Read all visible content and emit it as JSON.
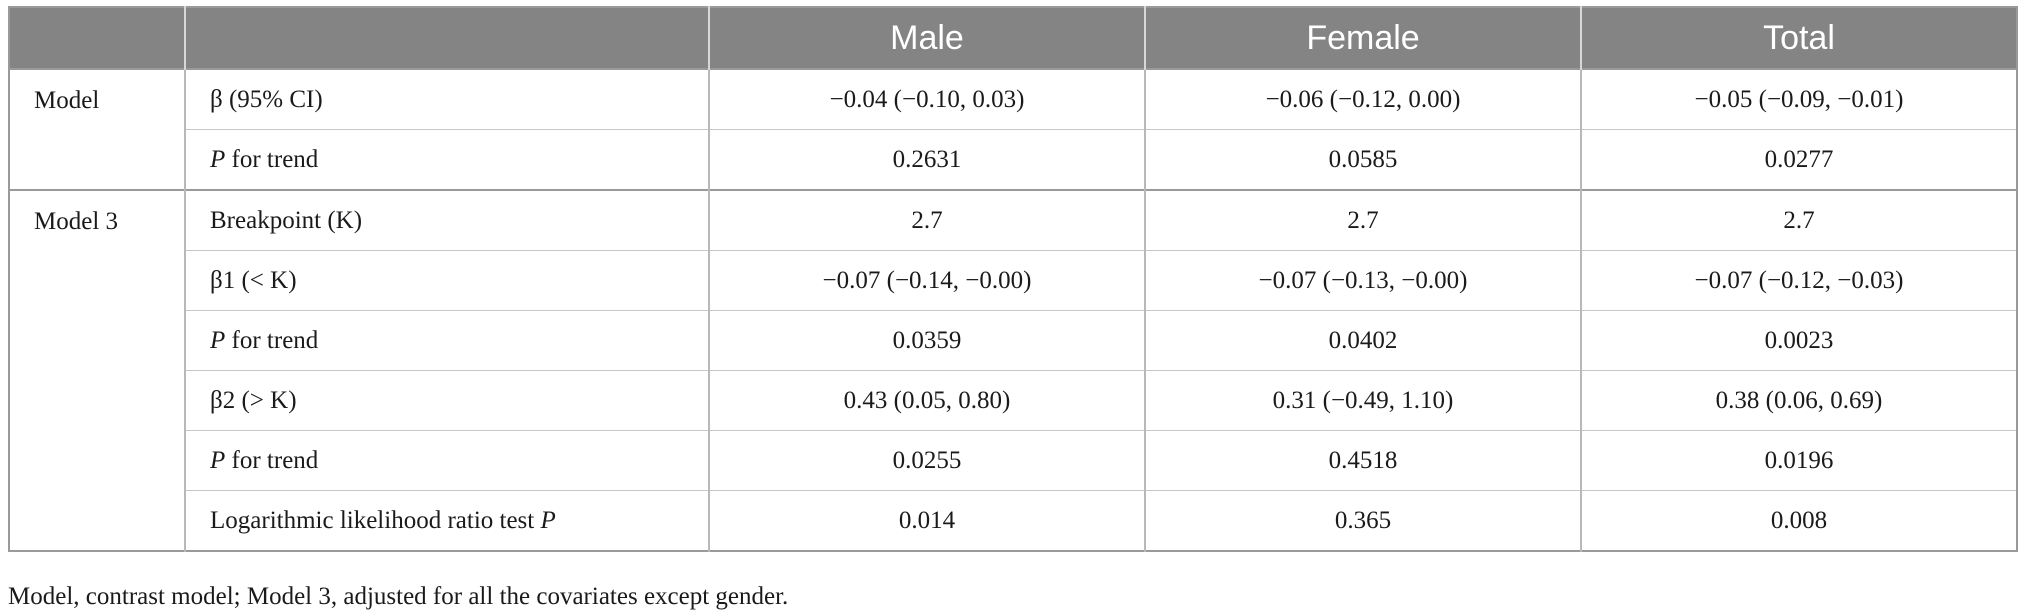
{
  "table": {
    "headers": [
      "",
      "",
      "Male",
      "Female",
      "Total"
    ],
    "groups": [
      {
        "name": "Model",
        "rows": [
          {
            "label_pre": "β (95% CI)",
            "label_ital": "",
            "label_post": "",
            "values": [
              "−0.04 (−0.10, 0.03)",
              "−0.06 (−0.12, 0.00)",
              "−0.05 (−0.09, −0.01)"
            ]
          },
          {
            "label_pre": "",
            "label_ital": "P",
            "label_post": " for trend",
            "values": [
              "0.2631",
              "0.0585",
              "0.0277"
            ]
          }
        ]
      },
      {
        "name": "Model 3",
        "rows": [
          {
            "label_pre": "Breakpoint (K)",
            "label_ital": "",
            "label_post": "",
            "values": [
              "2.7",
              "2.7",
              "2.7"
            ]
          },
          {
            "label_pre": "β1 (< K)",
            "label_ital": "",
            "label_post": "",
            "values": [
              "−0.07 (−0.14, −0.00)",
              "−0.07 (−0.13, −0.00)",
              "−0.07 (−0.12, −0.03)"
            ]
          },
          {
            "label_pre": "",
            "label_ital": "P",
            "label_post": " for trend",
            "values": [
              "0.0359",
              "0.0402",
              "0.0023"
            ]
          },
          {
            "label_pre": "β2 (> K)",
            "label_ital": "",
            "label_post": "",
            "values": [
              "0.43 (0.05, 0.80)",
              "0.31 (−0.49, 1.10)",
              "0.38 (0.06, 0.69)"
            ]
          },
          {
            "label_pre": "",
            "label_ital": "P",
            "label_post": " for trend",
            "values": [
              "0.0255",
              "0.4518",
              "0.0196"
            ]
          },
          {
            "label_pre": "Logarithmic likelihood ratio test ",
            "label_ital": "P",
            "label_post": "",
            "values": [
              "0.014",
              "0.365",
              "0.008"
            ]
          }
        ]
      }
    ]
  },
  "footnote": "Model, contrast model; Model 3, adjusted for all the covariates except gender."
}
